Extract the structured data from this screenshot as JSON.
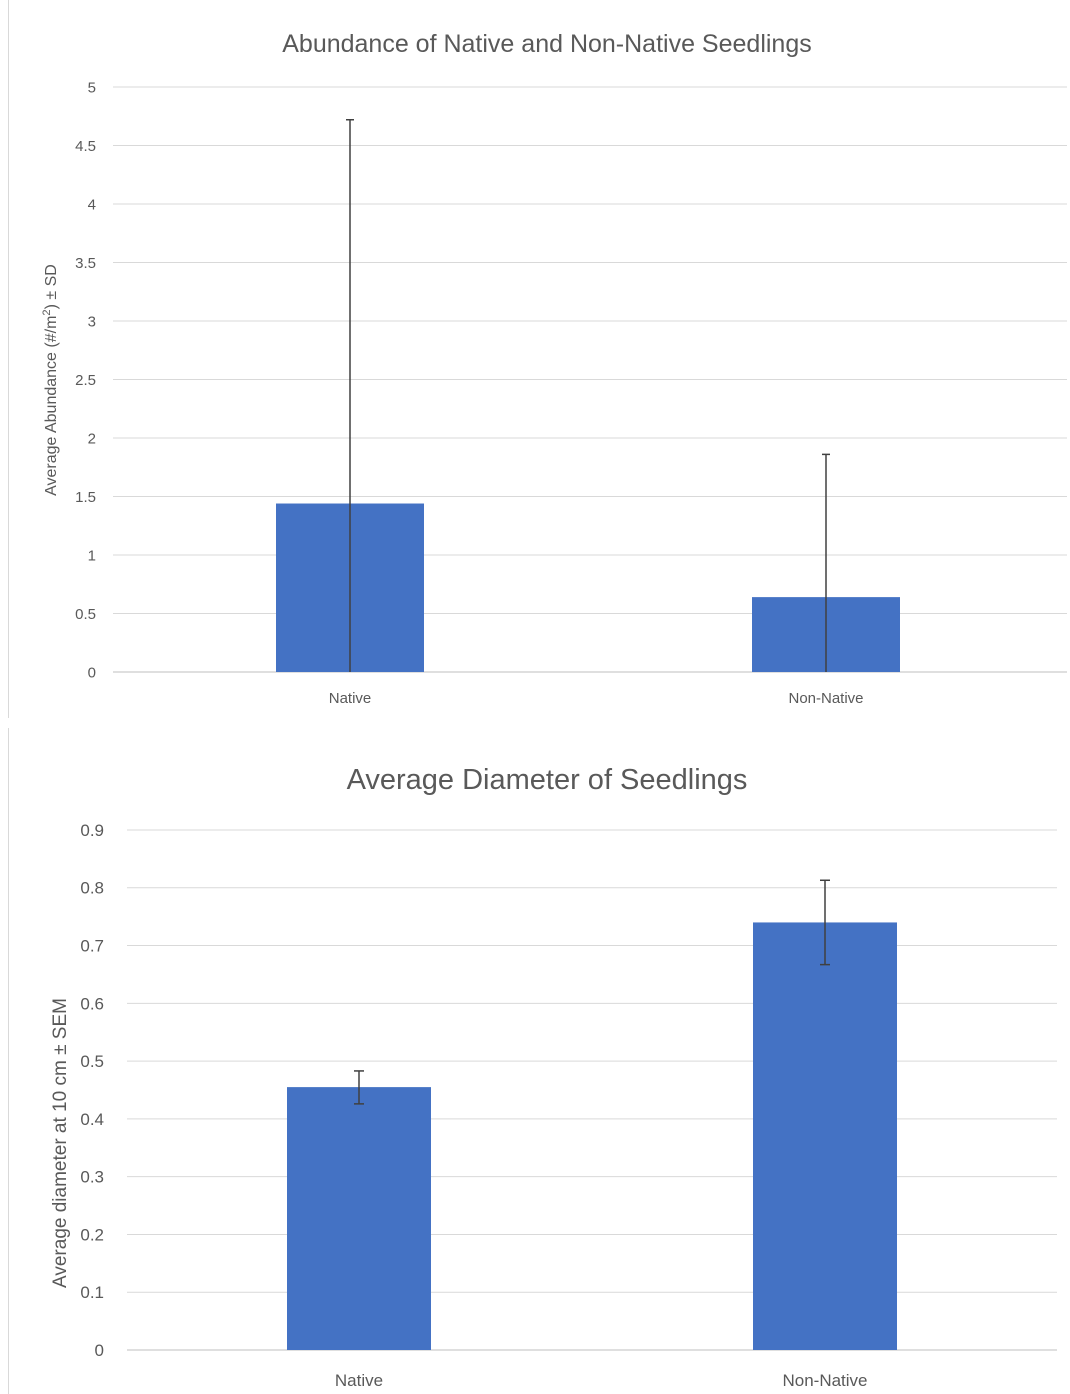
{
  "chart_data": [
    {
      "type": "bar",
      "title": "Abundance of Native and Non-Native Seedlings",
      "ylabel_main": "Average Abundance (#/m",
      "ylabel_sup": "2",
      "ylabel_tail": ") ± SD",
      "xlabel": "",
      "categories": [
        "Native",
        "Non-Native"
      ],
      "values": [
        1.44,
        0.64
      ],
      "error_upper": [
        4.72,
        1.86
      ],
      "error_lower": [
        0,
        0
      ],
      "error_type": "SD",
      "ylim": [
        0,
        5
      ],
      "yticks": [
        0,
        0.5,
        1,
        1.5,
        2,
        2.5,
        3,
        3.5,
        4,
        4.5,
        5
      ],
      "ytick_labels": [
        "0",
        "0.5",
        "1",
        "1.5",
        "2",
        "2.5",
        "3",
        "3.5",
        "4",
        "4.5",
        "5"
      ],
      "grid": true,
      "bar_color": "#4472c4"
    },
    {
      "type": "bar",
      "title": "Average Diameter of Seedlings",
      "ylabel_main": "Average diameter at 10 cm ± SEM",
      "ylabel_sup": "",
      "ylabel_tail": "",
      "xlabel": "",
      "categories": [
        "Native",
        "Non-Native"
      ],
      "values": [
        0.455,
        0.74
      ],
      "error_upper": [
        0.483,
        0.813
      ],
      "error_lower": [
        0.426,
        0.667
      ],
      "error_type": "SEM",
      "ylim": [
        0,
        0.9
      ],
      "yticks": [
        0,
        0.1,
        0.2,
        0.3,
        0.4,
        0.5,
        0.6,
        0.7,
        0.8,
        0.9
      ],
      "ytick_labels": [
        "0",
        "0.1",
        "0.2",
        "0.3",
        "0.4",
        "0.5",
        "0.6",
        "0.7",
        "0.8",
        "0.9"
      ],
      "grid": true,
      "bar_color": "#4472c4"
    }
  ]
}
